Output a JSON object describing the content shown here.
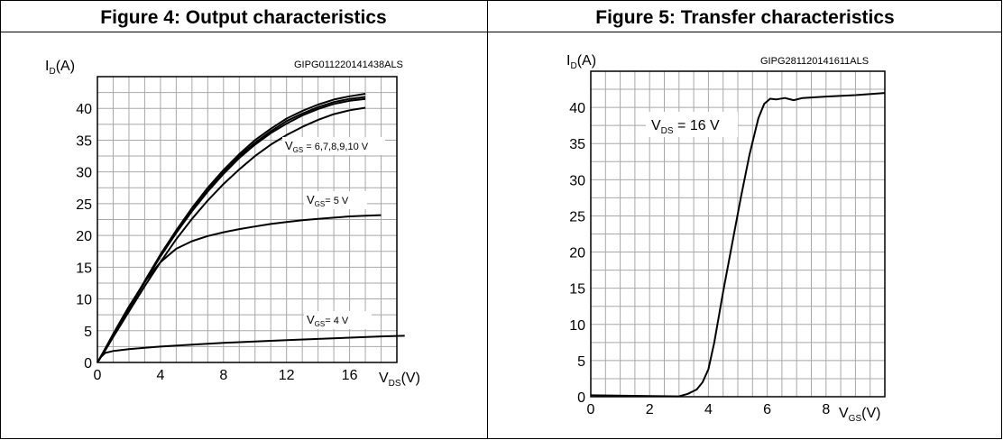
{
  "chart_data": [
    {
      "type": "line",
      "title": "Figure 4: Output characteristics",
      "code": "GIPG011220141438ALS",
      "ylabel_main": "I",
      "ylabel_sub": "D",
      "ylabel_unit": "(A)",
      "xlabel_main": "V",
      "xlabel_sub": "DS",
      "xlabel_unit": "(V)",
      "xlim": [
        0,
        19
      ],
      "ylim": [
        0,
        45
      ],
      "x_ticks": [
        "0",
        "4",
        "8",
        "12",
        "16"
      ],
      "y_ticks": [
        "0",
        "5",
        "10",
        "15",
        "20",
        "25",
        "30",
        "35",
        "40"
      ],
      "grid": true,
      "series": [
        {
          "x": [
            0,
            0.5,
            1,
            2,
            3,
            4,
            5,
            6,
            7,
            8,
            9,
            10,
            11,
            12,
            13,
            14,
            15,
            16,
            17
          ],
          "y": [
            0,
            2.0,
            4.2,
            8.5,
            12.8,
            17.0,
            20.8,
            24.3,
            27.5,
            30.3,
            32.8,
            35.0,
            36.8,
            38.4,
            39.6,
            40.6,
            41.4,
            41.9,
            42.3
          ]
        },
        {
          "x": [
            0,
            0.5,
            1,
            2,
            3,
            4,
            5,
            6,
            7,
            8,
            9,
            10,
            11,
            12,
            13,
            14,
            15,
            16,
            17
          ],
          "y": [
            0,
            2.0,
            4.2,
            8.4,
            12.7,
            16.8,
            20.6,
            24.0,
            27.2,
            30.0,
            32.5,
            34.6,
            36.4,
            38.0,
            39.2,
            40.2,
            41.0,
            41.5,
            41.8
          ]
        },
        {
          "x": [
            0,
            0.5,
            1,
            2,
            3,
            4,
            5,
            6,
            7,
            8,
            9,
            10,
            11,
            12,
            13,
            14,
            15,
            16,
            17
          ],
          "y": [
            0,
            2.0,
            4.2,
            8.4,
            12.6,
            16.7,
            20.4,
            23.8,
            26.9,
            29.7,
            32.2,
            34.3,
            36.1,
            37.6,
            38.9,
            39.9,
            40.7,
            41.2,
            41.5
          ]
        },
        {
          "x": [
            0,
            0.5,
            1,
            2,
            3,
            4,
            5,
            6,
            7,
            8,
            9,
            10,
            11,
            12,
            13,
            14,
            15,
            16,
            17
          ],
          "y": [
            0,
            1.9,
            4.0,
            8.0,
            12.0,
            15.8,
            19.4,
            22.6,
            25.5,
            28.1,
            30.4,
            32.5,
            34.3,
            35.8,
            37.1,
            38.2,
            39.1,
            39.7,
            40.1
          ]
        },
        {
          "x": [
            0,
            0.5,
            1,
            2,
            3,
            4,
            5,
            6,
            7,
            8,
            9,
            10,
            11,
            12,
            13,
            14,
            15,
            16,
            17,
            18
          ],
          "y": [
            0,
            2.2,
            4.5,
            8.8,
            12.7,
            15.8,
            17.9,
            19.1,
            19.9,
            20.5,
            21.0,
            21.4,
            21.8,
            22.1,
            22.4,
            22.6,
            22.8,
            23.0,
            23.1,
            23.2
          ]
        },
        {
          "x": [
            0,
            0.2,
            0.5,
            1,
            2,
            3,
            4,
            6,
            8,
            10,
            12,
            14,
            16,
            18,
            19.5
          ],
          "y": [
            0,
            0.8,
            1.5,
            1.8,
            2.1,
            2.3,
            2.5,
            2.8,
            3.1,
            3.3,
            3.5,
            3.7,
            3.9,
            4.1,
            4.2
          ]
        }
      ],
      "annotations": [
        {
          "main": "V",
          "sub": "GS",
          "text": " = 6,7,8,9,10 V"
        },
        {
          "main": "V",
          "sub": "GS",
          "text": "= 5 V"
        },
        {
          "main": "V",
          "sub": "GS",
          "text": "= 4 V"
        }
      ]
    },
    {
      "type": "line",
      "title": "Figure 5: Transfer characteristics",
      "code": "GIPG281120141611ALS",
      "ylabel_main": "I",
      "ylabel_sub": "D",
      "ylabel_unit": "(A)",
      "xlabel_main": "V",
      "xlabel_sub": "GS",
      "xlabel_unit": "(V)",
      "xlim": [
        0,
        10
      ],
      "ylim": [
        0,
        45
      ],
      "x_ticks": [
        "0",
        "2",
        "4",
        "6",
        "8"
      ],
      "y_ticks": [
        "0",
        "5",
        "10",
        "15",
        "20",
        "25",
        "30",
        "35",
        "40"
      ],
      "grid": true,
      "series": [
        {
          "x": [
            0,
            2.0,
            3.0,
            3.3,
            3.6,
            3.8,
            4.0,
            4.2,
            4.5,
            4.8,
            5.1,
            5.4,
            5.7,
            5.9,
            6.1,
            6.3,
            6.6,
            6.9,
            7.2,
            8.0,
            9.0,
            10.0
          ],
          "y": [
            0.2,
            0.1,
            0.05,
            0.4,
            1.0,
            2.0,
            3.8,
            7.5,
            14.5,
            21.0,
            27.5,
            33.5,
            38.5,
            40.5,
            41.2,
            41.1,
            41.3,
            41.0,
            41.3,
            41.5,
            41.7,
            42.0
          ]
        }
      ],
      "annotations": [
        {
          "main": "V",
          "sub": "DS",
          "text": " = 16 V"
        }
      ]
    }
  ]
}
